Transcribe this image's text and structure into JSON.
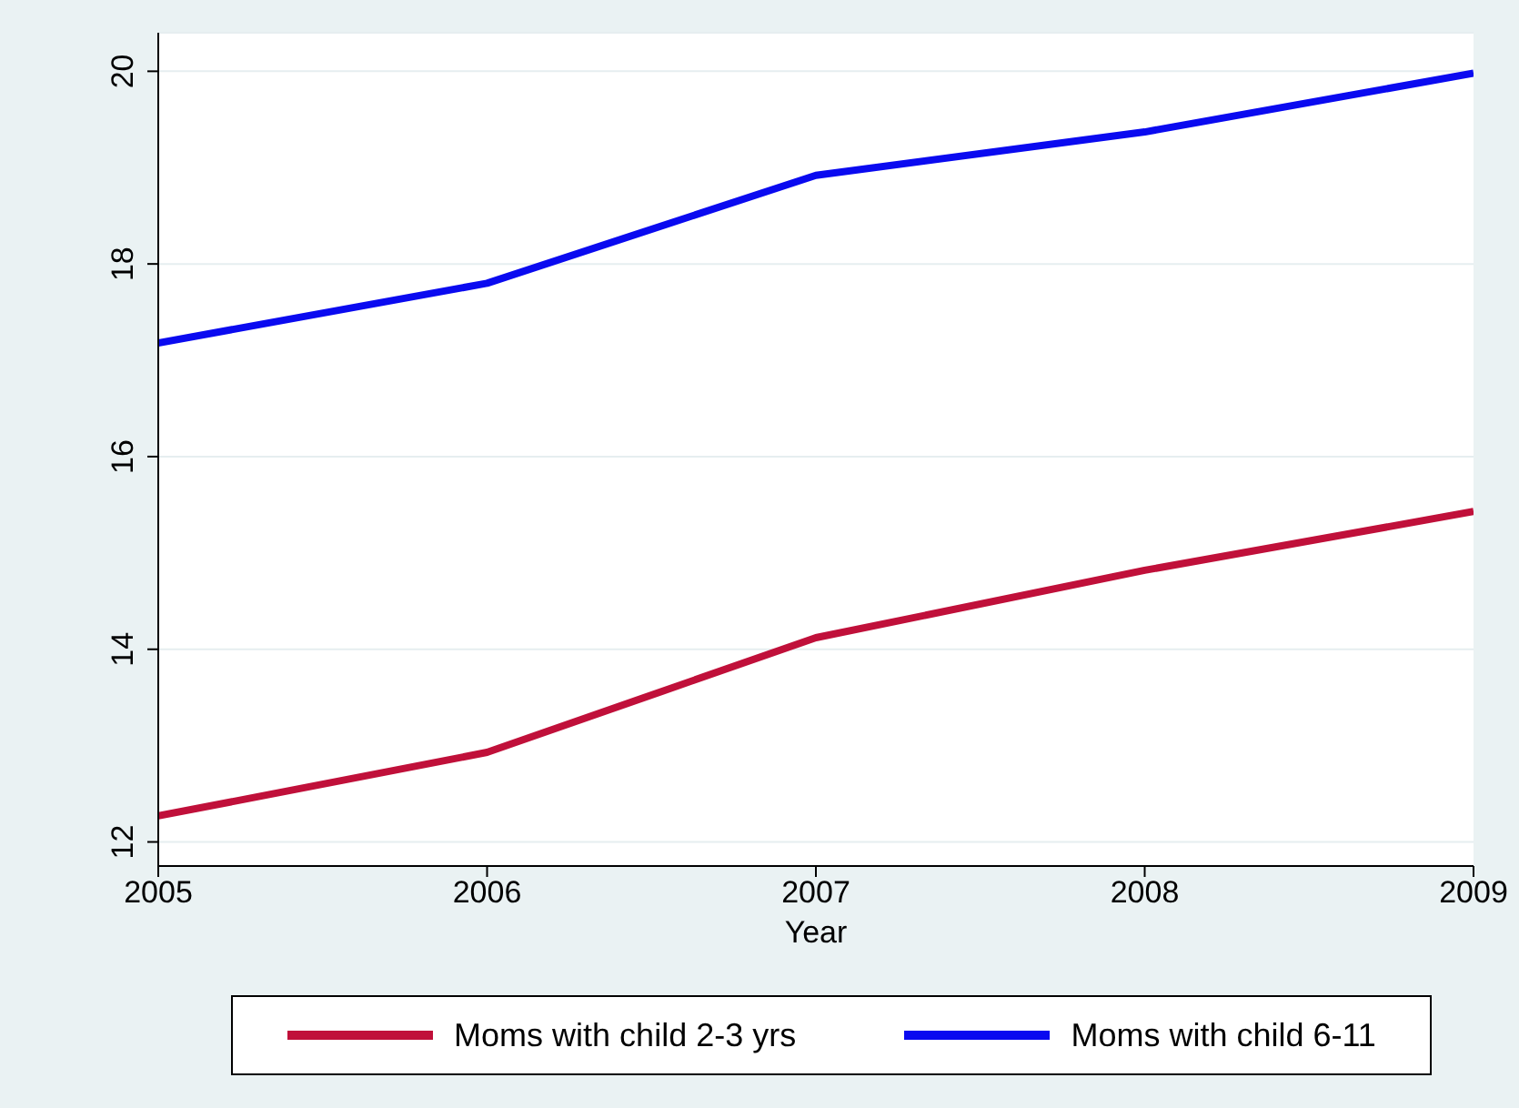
{
  "chart_data": {
    "type": "line",
    "xlabel": "Year",
    "x": [
      2005,
      2006,
      2007,
      2008,
      2009
    ],
    "series": [
      {
        "name": "Moms with child 2-3 yrs",
        "color": "#c0103a",
        "values": [
          12.27,
          12.93,
          14.12,
          14.82,
          15.43
        ]
      },
      {
        "name": "Moms with child 6-11",
        "color": "#0a0af0",
        "values": [
          17.18,
          17.8,
          18.92,
          19.37,
          19.98
        ]
      }
    ],
    "xlim": [
      2005,
      2009
    ],
    "xticks": [
      2005,
      2006,
      2007,
      2008,
      2009
    ],
    "ylim": [
      11.75,
      20.4
    ],
    "yticks": [
      12,
      14,
      16,
      18,
      20
    ],
    "grid": "y",
    "legend": "bottom",
    "marker": "none",
    "line_style": "solid"
  }
}
